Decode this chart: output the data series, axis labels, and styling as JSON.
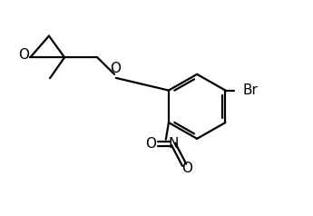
{
  "line_color": "#000000",
  "bg_color": "#ffffff",
  "line_width": 1.6,
  "font_size": 10.5,
  "figsize": [
    3.45,
    2.38
  ],
  "dpi": 100,
  "xlim": [
    0,
    10
  ],
  "ylim": [
    0,
    7
  ]
}
